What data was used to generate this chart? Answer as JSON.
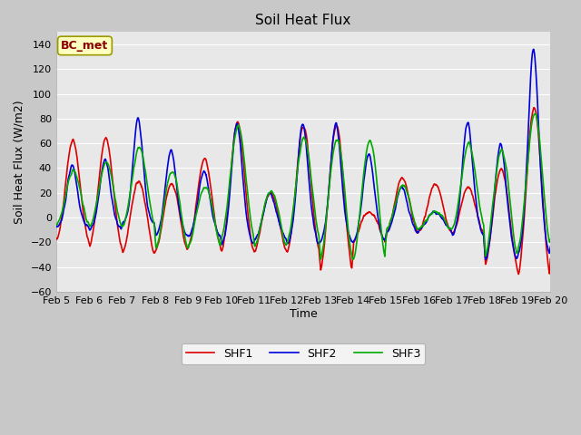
{
  "title": "Soil Heat Flux",
  "xlabel": "Time",
  "ylabel": "Soil Heat Flux (W/m2)",
  "ylim": [
    -60,
    150
  ],
  "yticks": [
    -60,
    -40,
    -20,
    0,
    20,
    40,
    60,
    80,
    100,
    120,
    140
  ],
  "xlim": [
    0,
    360
  ],
  "xtick_positions": [
    0,
    24,
    48,
    72,
    96,
    120,
    144,
    168,
    192,
    216,
    240,
    264,
    288,
    312,
    336,
    360
  ],
  "xtick_labels": [
    "Feb 5",
    "Feb 6",
    "Feb 7",
    "Feb 8",
    "Feb 9",
    "Feb 10",
    "Feb 11",
    "Feb 12",
    "Feb 13",
    "Feb 14",
    "Feb 15",
    "Feb 16",
    "Feb 17",
    "Feb 18",
    "Feb 19",
    "Feb 20"
  ],
  "legend_labels": [
    "SHF1",
    "SHF2",
    "SHF3"
  ],
  "legend_colors": [
    "#dd0000",
    "#0000dd",
    "#00aa00"
  ],
  "line_width": 1.2,
  "annotation_text": "BC_met",
  "annotation_color": "#8b0000",
  "annotation_bg": "#ffffc0",
  "fig_bg": "#c8c8c8",
  "plot_bg": "#e8e8e8",
  "grid_color": "#ffffff",
  "title_fontsize": 11,
  "axis_fontsize": 9,
  "tick_fontsize": 8
}
